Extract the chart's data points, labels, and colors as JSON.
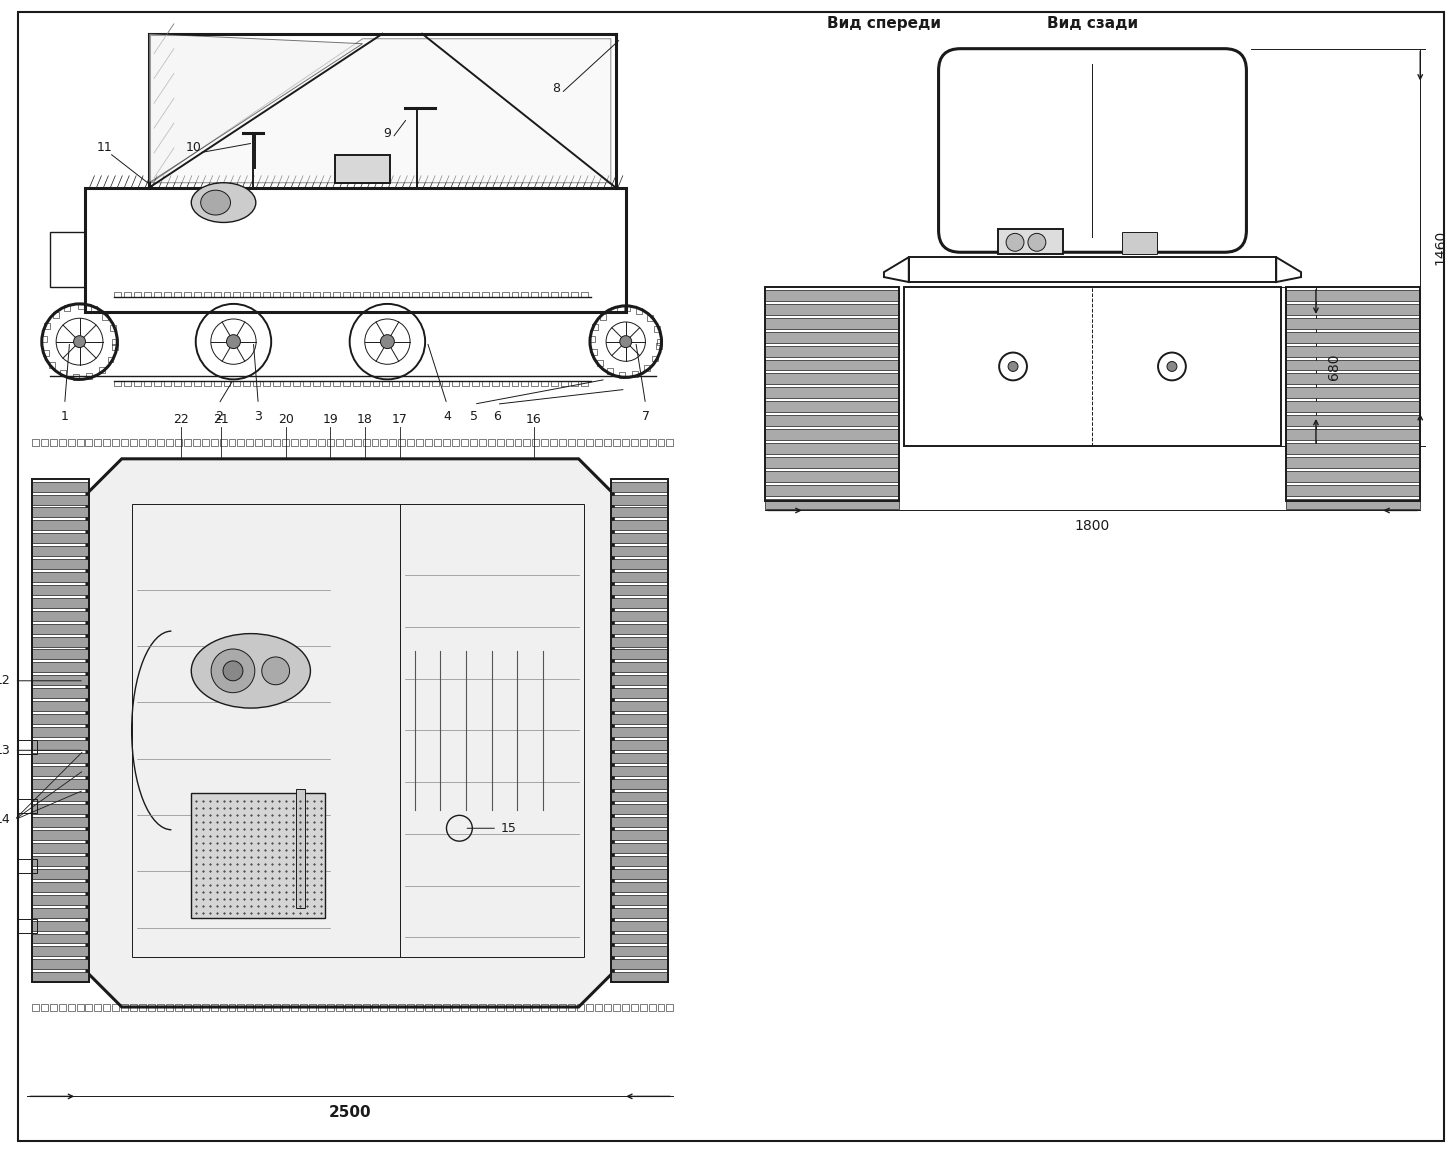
{
  "bg_color": "#ffffff",
  "line_color": "#1a1a1a",
  "label_front": "Вид спереди",
  "label_rear": "Вид сзади",
  "dim_1460": "1460",
  "dim_1800": "1800",
  "dim_680": "680",
  "dim_2500": "2500",
  "border": [
    8,
    8,
    1444,
    1145
  ]
}
